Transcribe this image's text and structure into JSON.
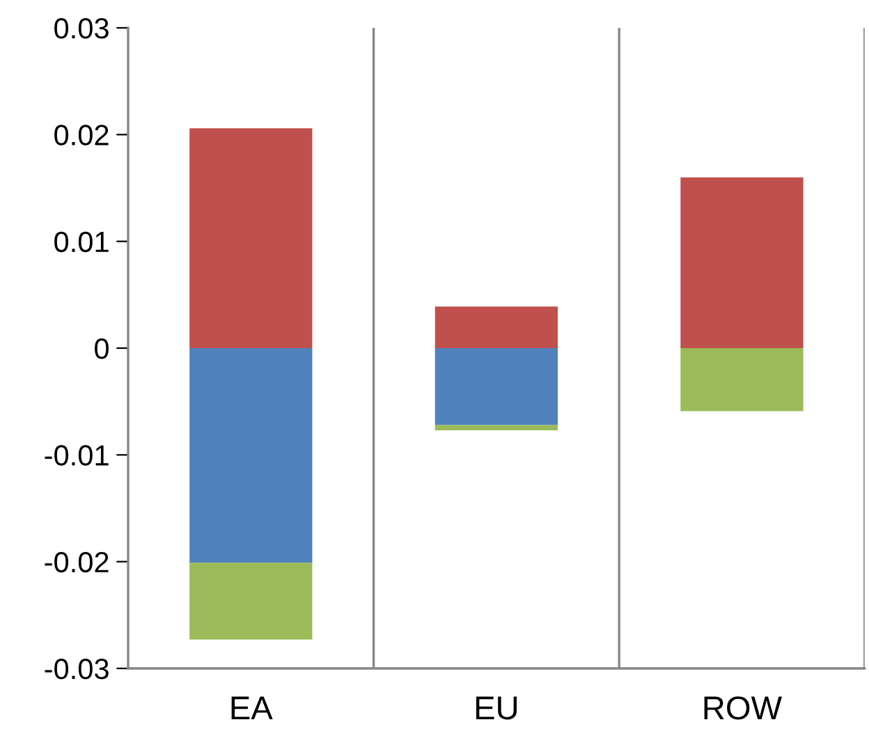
{
  "chart_data": {
    "type": "bar",
    "stacked": true,
    "categories": [
      "EA",
      "EU",
      "ROW"
    ],
    "series": [
      {
        "color": "#c0504d",
        "values": [
          0.0206,
          0.0039,
          0.016
        ]
      },
      {
        "color": "#4f81bd",
        "values": [
          -0.0201,
          -0.0072,
          0
        ]
      },
      {
        "color": "#9bbb59",
        "values": [
          -0.0072,
          -0.0005,
          -0.0059
        ]
      }
    ],
    "ylim": [
      -0.03,
      0.03
    ],
    "yticks": [
      -0.03,
      -0.02,
      -0.01,
      0,
      0.01,
      0.02,
      0.03
    ],
    "grid": "x",
    "legend": false
  }
}
